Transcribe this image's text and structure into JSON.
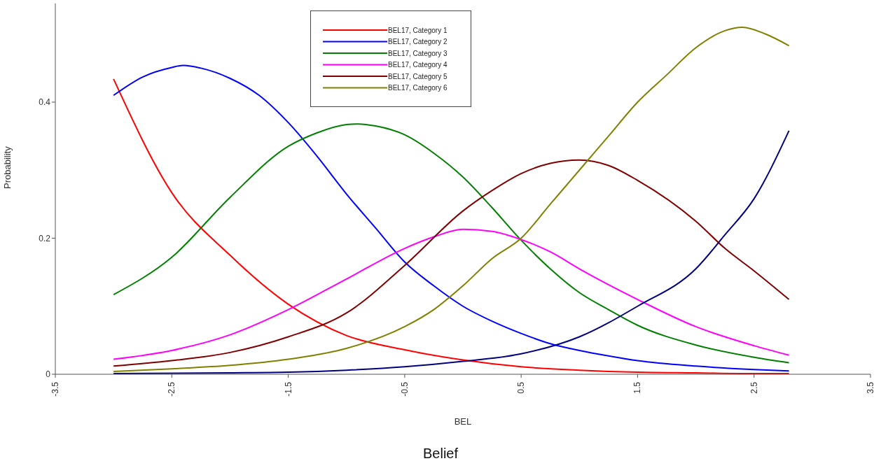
{
  "chart_data": {
    "type": "line",
    "title": "Belief",
    "xlabel": "BEL",
    "ylabel": "Probability",
    "xlim": [
      -3.5,
      3.5
    ],
    "xticks": [
      -3.5,
      -2.5,
      -1.5,
      -0.5,
      0.5,
      1.5,
      2.5,
      3.5
    ],
    "ylim": [
      0,
      0.545
    ],
    "yticks": [
      0,
      0.2,
      0.4
    ],
    "grid": false,
    "legend": "top",
    "marker": "none",
    "line_style": "solid",
    "series": [
      {
        "name": "BEL17, Category 1",
        "color": "#ff0000",
        "x": [
          -3,
          -2.5,
          -2,
          -1.5,
          -1,
          -0.5,
          0,
          0.5,
          1,
          1.5,
          2,
          2.5,
          2.8
        ],
        "values": [
          0.434,
          0.267,
          0.175,
          0.103,
          0.057,
          0.036,
          0.021,
          0.011,
          0.006,
          0.003,
          0.002,
          0.001,
          0.001
        ]
      },
      {
        "name": "BEL17, Category 2",
        "color": "#0000ff",
        "x": [
          -3,
          -2.75,
          -2.5,
          -2.4,
          -2.25,
          -2,
          -1.75,
          -1.5,
          -1.25,
          -1,
          -0.75,
          -0.5,
          -0.25,
          0,
          0.25,
          0.5,
          0.75,
          1,
          1.25,
          1.5,
          2,
          2.5,
          2.8
        ],
        "values": [
          0.41,
          0.437,
          0.451,
          0.454,
          0.45,
          0.435,
          0.41,
          0.37,
          0.32,
          0.265,
          0.215,
          0.165,
          0.13,
          0.1,
          0.078,
          0.06,
          0.045,
          0.035,
          0.027,
          0.02,
          0.012,
          0.007,
          0.005
        ]
      },
      {
        "name": "BEL17, Category 3",
        "color": "#008000",
        "x": [
          -3,
          -2.5,
          -2,
          -1.5,
          -1.25,
          -1,
          -0.9,
          -0.75,
          -0.5,
          -0.25,
          0,
          0.25,
          0.5,
          0.75,
          1,
          1.25,
          1.5,
          2,
          2.5,
          2.8
        ],
        "values": [
          0.117,
          0.172,
          0.26,
          0.335,
          0.355,
          0.367,
          0.368,
          0.365,
          0.352,
          0.325,
          0.29,
          0.245,
          0.197,
          0.155,
          0.12,
          0.095,
          0.072,
          0.043,
          0.025,
          0.017
        ]
      },
      {
        "name": "BEL17, Category 4",
        "color": "#ff00ff",
        "x": [
          -3,
          -2.5,
          -2,
          -1.5,
          -1,
          -0.5,
          -0.25,
          0,
          0.25,
          0.5,
          0.75,
          1,
          1.5,
          2,
          2.5,
          2.8
        ],
        "values": [
          0.022,
          0.035,
          0.058,
          0.095,
          0.14,
          0.185,
          0.202,
          0.213,
          0.21,
          0.198,
          0.18,
          0.155,
          0.11,
          0.07,
          0.042,
          0.028
        ]
      },
      {
        "name": "BEL17, Category 5",
        "color": "#800000",
        "x": [
          -3,
          -2.5,
          -2,
          -1.5,
          -1,
          -0.5,
          0,
          0.25,
          0.5,
          0.75,
          1,
          1.25,
          1.5,
          2,
          2.25,
          2.5,
          2.8
        ],
        "values": [
          0.012,
          0.02,
          0.032,
          0.055,
          0.09,
          0.16,
          0.24,
          0.27,
          0.295,
          0.31,
          0.315,
          0.307,
          0.285,
          0.225,
          0.185,
          0.152,
          0.11
        ]
      },
      {
        "name": "BEL17, Category 6",
        "color": "#808000",
        "x": [
          -3,
          -2.5,
          -2,
          -1.5,
          -1,
          -0.5,
          -0.25,
          0,
          0.25,
          0.5,
          0.75,
          1,
          1.25,
          1.5,
          1.75,
          2,
          2.25,
          2.4,
          2.6,
          2.8
        ],
        "values": [
          0.004,
          0.008,
          0.013,
          0.022,
          0.038,
          0.07,
          0.095,
          0.13,
          0.17,
          0.2,
          0.25,
          0.3,
          0.35,
          0.4,
          0.44,
          0.48,
          0.505,
          0.51,
          0.5,
          0.483
        ]
      },
      {
        "color": "#000080",
        "x": [
          -3,
          -2,
          -1.5,
          -1,
          -0.5,
          0,
          0.5,
          1,
          1.5,
          2,
          2.25,
          2.5,
          2.8
        ],
        "values": [
          0.001,
          0.002,
          0.003,
          0.006,
          0.011,
          0.019,
          0.03,
          0.055,
          0.1,
          0.155,
          0.205,
          0.258,
          0.358
        ]
      }
    ]
  }
}
